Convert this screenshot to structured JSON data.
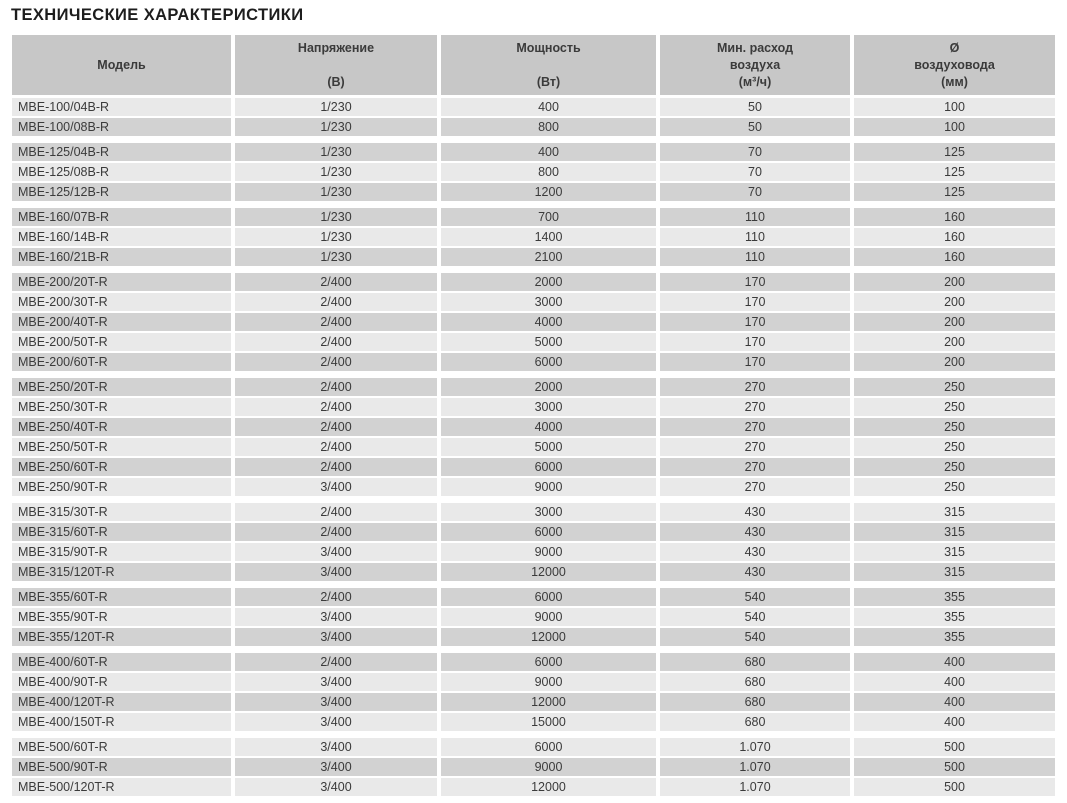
{
  "page": {
    "title": "ТЕХНИЧЕСКИЕ ХАРАКТЕРИСТИКИ"
  },
  "colors": {
    "header_bg": "#c7c7c7",
    "row_light": "#e9e9e9",
    "row_dark": "#d2d2d2",
    "text": "#3b3b3b",
    "title_text": "#1d1d1d",
    "background": "#ffffff"
  },
  "table": {
    "columns": [
      {
        "id": "model",
        "label": "Модель",
        "lines": [
          "Модель"
        ]
      },
      {
        "id": "voltage",
        "label": "Напряжение (В)",
        "lines": [
          "Напряжение",
          "",
          "(В)"
        ]
      },
      {
        "id": "power",
        "label": "Мощность (Вт)",
        "lines": [
          "Мощность",
          "",
          "(Вт)"
        ]
      },
      {
        "id": "airflow",
        "label": "Мин. расход воздуха (м³/ч)",
        "lines": [
          "Мин. расход",
          "воздуха",
          "(м³/ч)"
        ]
      },
      {
        "id": "diameter",
        "label": "Ø воздуховода (мм)",
        "lines": [
          "Ø",
          "воздуховода",
          "(мм)"
        ]
      }
    ],
    "groups": [
      {
        "series": "MBE-100",
        "rows": [
          [
            "MBE-100/04B-R",
            "1/230",
            "400",
            "50",
            "100"
          ],
          [
            "MBE-100/08B-R",
            "1/230",
            "800",
            "50",
            "100"
          ]
        ]
      },
      {
        "series": "MBE-125",
        "rows": [
          [
            "MBE-125/04B-R",
            "1/230",
            "400",
            "70",
            "125"
          ],
          [
            "MBE-125/08B-R",
            "1/230",
            "800",
            "70",
            "125"
          ],
          [
            "MBE-125/12B-R",
            "1/230",
            "1200",
            "70",
            "125"
          ]
        ]
      },
      {
        "series": "MBE-160",
        "rows": [
          [
            "MBE-160/07B-R",
            "1/230",
            "700",
            "110",
            "160"
          ],
          [
            "MBE-160/14B-R",
            "1/230",
            "1400",
            "110",
            "160"
          ],
          [
            "MBE-160/21B-R",
            "1/230",
            "2100",
            "110",
            "160"
          ]
        ]
      },
      {
        "series": "MBE-200",
        "rows": [
          [
            "MBE-200/20T-R",
            "2/400",
            "2000",
            "170",
            "200"
          ],
          [
            "MBE-200/30T-R",
            "2/400",
            "3000",
            "170",
            "200"
          ],
          [
            "MBE-200/40T-R",
            "2/400",
            "4000",
            "170",
            "200"
          ],
          [
            "MBE-200/50T-R",
            "2/400",
            "5000",
            "170",
            "200"
          ],
          [
            "MBE-200/60T-R",
            "2/400",
            "6000",
            "170",
            "200"
          ]
        ]
      },
      {
        "series": "MBE-250",
        "rows": [
          [
            "MBE-250/20T-R",
            "2/400",
            "2000",
            "270",
            "250"
          ],
          [
            "MBE-250/30T-R",
            "2/400",
            "3000",
            "270",
            "250"
          ],
          [
            "MBE-250/40T-R",
            "2/400",
            "4000",
            "270",
            "250"
          ],
          [
            "MBE-250/50T-R",
            "2/400",
            "5000",
            "270",
            "250"
          ],
          [
            "MBE-250/60T-R",
            "2/400",
            "6000",
            "270",
            "250"
          ],
          [
            "MBE-250/90T-R",
            "3/400",
            "9000",
            "270",
            "250"
          ]
        ]
      },
      {
        "series": "MBE-315",
        "rows": [
          [
            "MBE-315/30T-R",
            "2/400",
            "3000",
            "430",
            "315"
          ],
          [
            "MBE-315/60T-R",
            "2/400",
            "6000",
            "430",
            "315"
          ],
          [
            "MBE-315/90T-R",
            "3/400",
            "9000",
            "430",
            "315"
          ],
          [
            "MBE-315/120T-R",
            "3/400",
            "12000",
            "430",
            "315"
          ]
        ]
      },
      {
        "series": "MBE-355",
        "rows": [
          [
            "MBE-355/60T-R",
            "2/400",
            "6000",
            "540",
            "355"
          ],
          [
            "MBE-355/90T-R",
            "3/400",
            "9000",
            "540",
            "355"
          ],
          [
            "MBE-355/120T-R",
            "3/400",
            "12000",
            "540",
            "355"
          ]
        ]
      },
      {
        "series": "MBE-400",
        "rows": [
          [
            "MBE-400/60T-R",
            "2/400",
            "6000",
            "680",
            "400"
          ],
          [
            "MBE-400/90T-R",
            "3/400",
            "9000",
            "680",
            "400"
          ],
          [
            "MBE-400/120T-R",
            "3/400",
            "12000",
            "680",
            "400"
          ],
          [
            "MBE-400/150T-R",
            "3/400",
            "15000",
            "680",
            "400"
          ]
        ]
      },
      {
        "series": "MBE-500",
        "rows": [
          [
            "MBE-500/60T-R",
            "3/400",
            "6000",
            "1.070",
            "500"
          ],
          [
            "MBE-500/90T-R",
            "3/400",
            "9000",
            "1.070",
            "500"
          ],
          [
            "MBE-500/120T-R",
            "3/400",
            "12000",
            "1.070",
            "500"
          ]
        ]
      }
    ]
  }
}
